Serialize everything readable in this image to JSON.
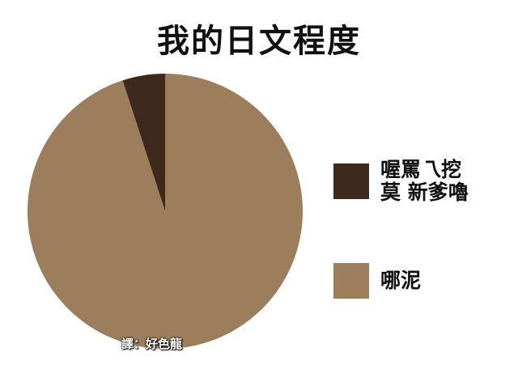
{
  "chart_data": {
    "type": "pie",
    "title": "我的日文程度",
    "slices": [
      {
        "label": "喔罵乁挖\n莫 新爹嚕",
        "value": 5,
        "color": "#3d2a1c"
      },
      {
        "label": "哪泥",
        "value": 95,
        "color": "#9c7d5c"
      }
    ],
    "legend_position": "right",
    "annotation": "譯：好色龍"
  }
}
